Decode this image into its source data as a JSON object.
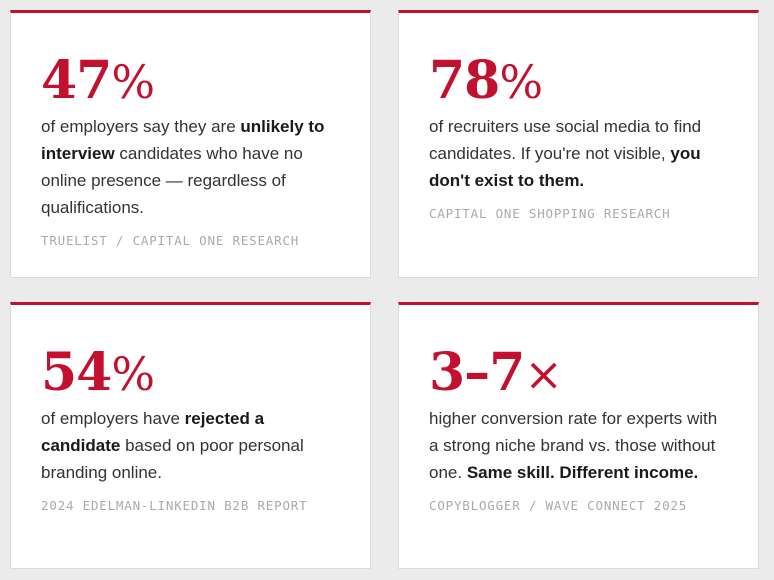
{
  "cards": [
    {
      "stat": {
        "number": "47",
        "unit": "%"
      },
      "body": [
        {
          "text": "of employers say they are ",
          "bold": false
        },
        {
          "text": "unlikely to interview",
          "bold": true
        },
        {
          "text": " candidates who have no online presence — regardless of qualifications.",
          "bold": false
        }
      ],
      "source": "TRUELIST / CAPITAL ONE RESEARCH"
    },
    {
      "stat": {
        "number": "78",
        "unit": "%"
      },
      "body": [
        {
          "text": "of recruiters use social media to find candidates. If you're not visible, ",
          "bold": false
        },
        {
          "text": "you don't exist to them.",
          "bold": true
        }
      ],
      "source": "CAPITAL ONE SHOPPING RESEARCH"
    },
    {
      "stat": {
        "number": "54",
        "unit": "%"
      },
      "body": [
        {
          "text": "of employers have ",
          "bold": false
        },
        {
          "text": "rejected a candidate",
          "bold": true
        },
        {
          "text": " based on poor personal branding online.",
          "bold": false
        }
      ],
      "source": "2024 EDELMAN-LINKEDIN B2B REPORT"
    },
    {
      "stat": {
        "number": "3–7",
        "unit": "×"
      },
      "body": [
        {
          "text": "higher conversion rate for experts with a strong niche brand vs. those without one. ",
          "bold": false
        },
        {
          "text": "Same skill. Different income.",
          "bold": true
        }
      ],
      "source": "COPYBLOGGER / WAVE CONNECT 2025"
    }
  ]
}
